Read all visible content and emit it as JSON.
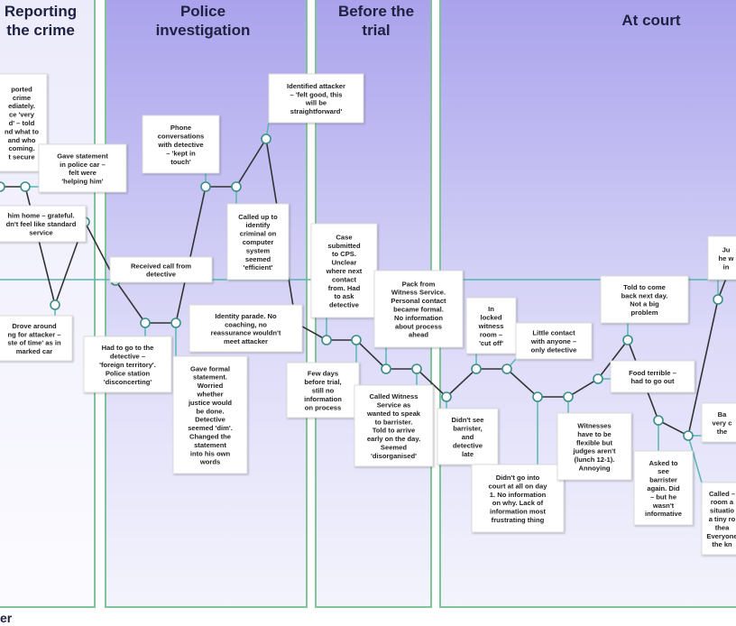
{
  "stages": [
    {
      "lines": [
        "Reporting",
        "the crime"
      ]
    },
    {
      "lines": [
        "Police",
        "investigation"
      ]
    },
    {
      "lines": [
        "Before the",
        "trial"
      ]
    },
    {
      "lines": [
        "At court"
      ]
    }
  ],
  "notes": [
    {
      "lines": [
        "ported",
        "crime",
        "ediately.",
        "ce 'very",
        "d' – told",
        "nd what to",
        "and who",
        "coming.",
        "t secure"
      ]
    },
    {
      "lines": [
        "Gave statement",
        "in police car –",
        "felt were",
        "'helping him'"
      ]
    },
    {
      "lines": [
        "him home – grateful.",
        "dn't feel like standard",
        "service"
      ]
    },
    {
      "lines": [
        "Drove around",
        "ng for attacker –",
        "ste of time' as in",
        "marked car"
      ]
    },
    {
      "lines": [
        "Received call from",
        "detective"
      ]
    },
    {
      "lines": [
        "Phone",
        "conversations",
        "with detective",
        "– 'kept in",
        "touch'"
      ]
    },
    {
      "lines": [
        "Identified attacker",
        "– 'felt good, this",
        "will be",
        "straightforward'"
      ]
    },
    {
      "lines": [
        "Called up to",
        "identify",
        "criminal on",
        "computer",
        "system",
        "seemed",
        "'efficient'"
      ]
    },
    {
      "lines": [
        "Had to go to the",
        "detective –",
        "'foreign territory'.",
        "Police station",
        "'disconcerting'"
      ]
    },
    {
      "lines": [
        "Identity parade. No",
        "coaching, no",
        "reassurance wouldn't",
        "meet attacker"
      ]
    },
    {
      "lines": [
        "Gave formal",
        "statement.",
        "Worried",
        "whether",
        "justice would",
        "be done.",
        "Detective",
        "seemed 'dim'.",
        "Changed the",
        "statement",
        "into his own",
        "words"
      ]
    },
    {
      "lines": [
        "Case",
        "submitted",
        "to CPS.",
        "Unclear",
        "where next",
        "contact",
        "from. Had",
        "to ask",
        "detective"
      ]
    },
    {
      "lines": [
        "Few days",
        "before trial,",
        "still no",
        "information",
        "on process"
      ]
    },
    {
      "lines": [
        "Pack from",
        "Witness Service.",
        "Personal contact",
        "became formal.",
        "No information",
        "about process",
        "ahead"
      ]
    },
    {
      "lines": [
        "Called Witness",
        "Service as",
        "wanted to speak",
        "to barrister.",
        "Told to arrive",
        "early on the day.",
        "Seemed",
        "'disorganised'"
      ]
    },
    {
      "lines": [
        "In",
        "locked",
        "witness",
        "room –",
        "'cut off'"
      ]
    },
    {
      "lines": [
        "Didn't see",
        "barrister,",
        "and",
        "detective",
        "late"
      ]
    },
    {
      "lines": [
        "Little contact",
        "with anyone –",
        "only detective"
      ]
    },
    {
      "lines": [
        "Didn't go into",
        "court at all on day",
        "1. No information",
        "on why. Lack of",
        "information most",
        "frustrating thing"
      ]
    },
    {
      "lines": [
        "Witnesses",
        "have to be",
        "flexible but",
        "judges aren't",
        "(lunch 12-1).",
        "Annoying"
      ]
    },
    {
      "lines": [
        "Told to come",
        "back next day.",
        "Not a big",
        "problem"
      ]
    },
    {
      "lines": [
        "Food terrible –",
        "had to go out"
      ]
    },
    {
      "lines": [
        "Asked to",
        "see",
        "barrister",
        "again. Did",
        "– but he",
        "wasn't",
        "informative"
      ]
    },
    {
      "lines": [
        "Ju",
        "he w",
        "in"
      ]
    },
    {
      "lines": [
        "Ba",
        "very c",
        "the"
      ]
    },
    {
      "lines": [
        "Called –",
        "room a",
        "situatio",
        "a tiny ro",
        "thea",
        "Everyone",
        "the kn"
      ]
    }
  ],
  "footer": "er"
}
